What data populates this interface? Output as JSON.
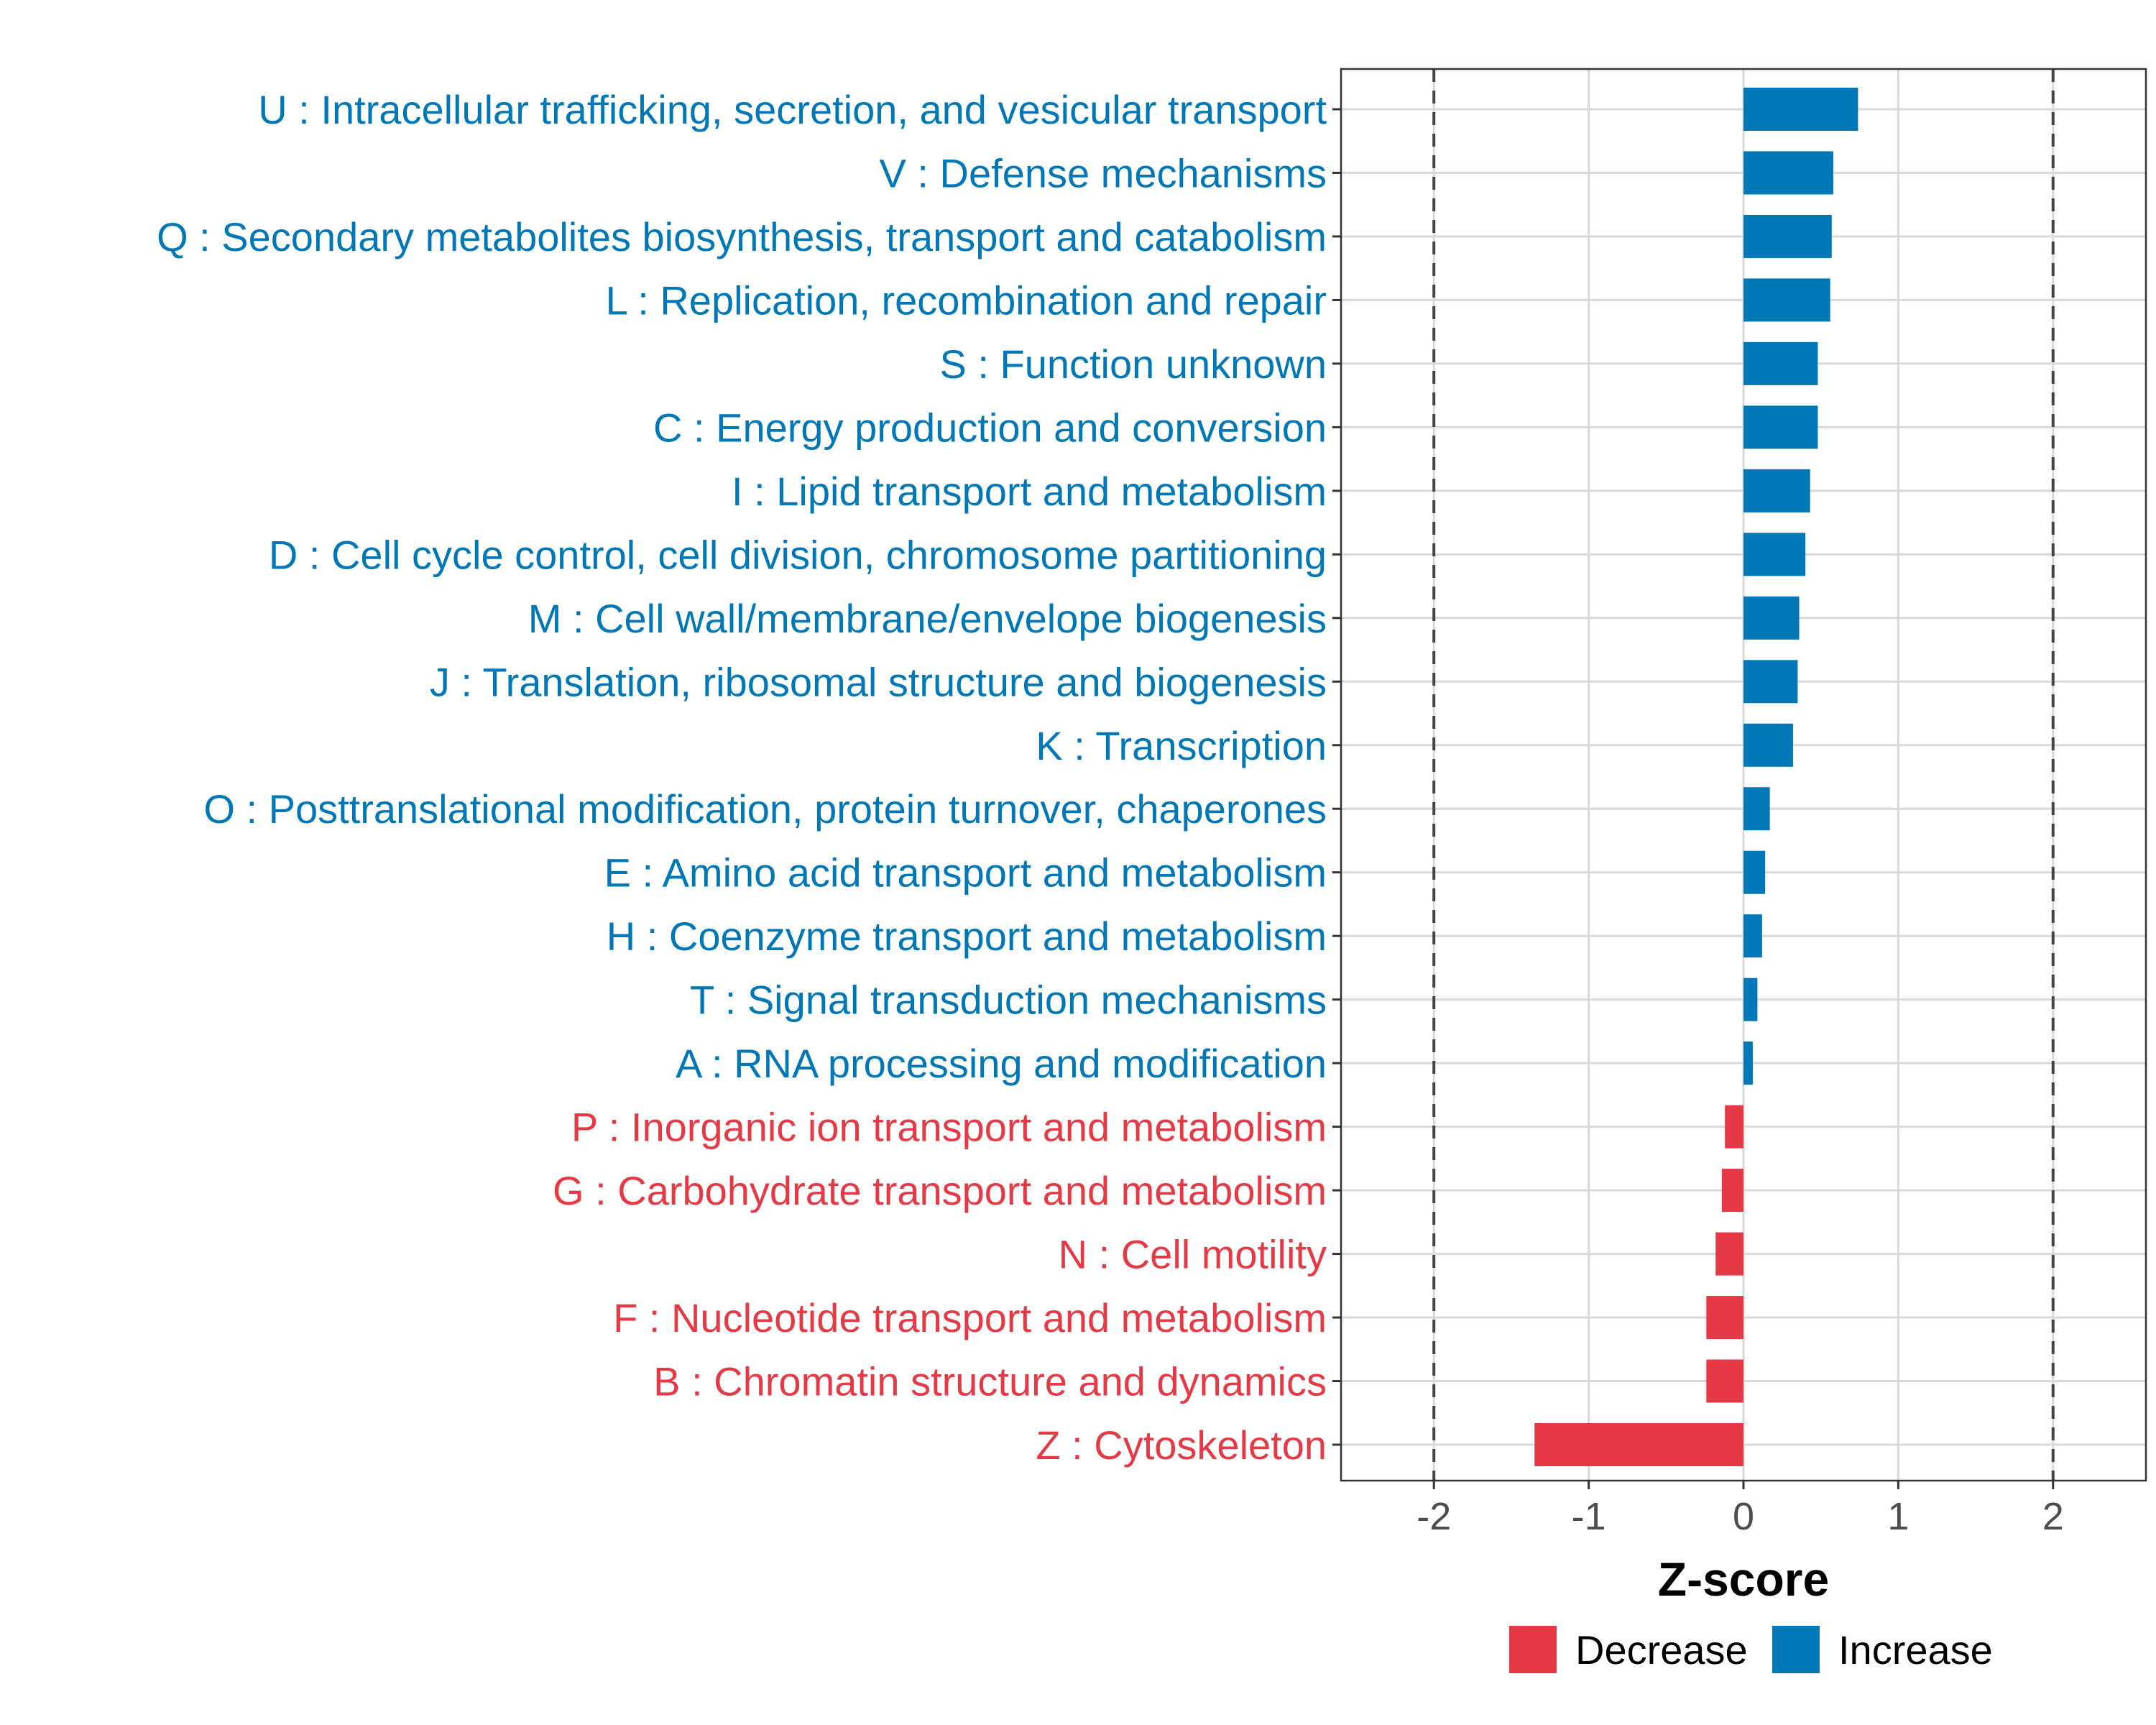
{
  "chart_data": {
    "type": "bar",
    "orientation": "horizontal",
    "title": "",
    "xlabel": "Z-score",
    "ylabel": "",
    "xlim": [
      -2.6,
      2.6
    ],
    "x_ticks": [
      -2,
      -1,
      0,
      1,
      2
    ],
    "x_tick_labels": [
      "-2",
      "-1",
      "0",
      "1",
      "2"
    ],
    "reference_lines": [
      -2,
      2
    ],
    "grid": true,
    "legend_position": "bottom",
    "colors": {
      "Decrease": "#E63946",
      "Increase": "#0077B6"
    },
    "legend": [
      {
        "label": "Decrease",
        "key": "Decrease"
      },
      {
        "label": "Increase",
        "key": "Increase"
      }
    ],
    "categories": [
      {
        "label": "U : Intracellular trafficking, secretion, and vesicular transport",
        "value": 0.74,
        "direction": "Increase"
      },
      {
        "label": "V : Defense mechanisms",
        "value": 0.58,
        "direction": "Increase"
      },
      {
        "label": "Q : Secondary metabolites biosynthesis, transport and catabolism",
        "value": 0.57,
        "direction": "Increase"
      },
      {
        "label": "L : Replication, recombination and repair",
        "value": 0.56,
        "direction": "Increase"
      },
      {
        "label": "S : Function unknown",
        "value": 0.48,
        "direction": "Increase"
      },
      {
        "label": "C : Energy production and conversion",
        "value": 0.48,
        "direction": "Increase"
      },
      {
        "label": "I : Lipid transport and metabolism",
        "value": 0.43,
        "direction": "Increase"
      },
      {
        "label": "D : Cell cycle control, cell division, chromosome partitioning",
        "value": 0.4,
        "direction": "Increase"
      },
      {
        "label": "M : Cell wall/membrane/envelope biogenesis",
        "value": 0.36,
        "direction": "Increase"
      },
      {
        "label": "J : Translation, ribosomal structure and biogenesis",
        "value": 0.35,
        "direction": "Increase"
      },
      {
        "label": "K : Transcription",
        "value": 0.32,
        "direction": "Increase"
      },
      {
        "label": "O : Posttranslational modification, protein turnover, chaperones",
        "value": 0.17,
        "direction": "Increase"
      },
      {
        "label": "E : Amino acid transport and metabolism",
        "value": 0.14,
        "direction": "Increase"
      },
      {
        "label": "H : Coenzyme transport and metabolism",
        "value": 0.12,
        "direction": "Increase"
      },
      {
        "label": "T : Signal transduction mechanisms",
        "value": 0.09,
        "direction": "Increase"
      },
      {
        "label": "A : RNA processing and modification",
        "value": 0.06,
        "direction": "Increase"
      },
      {
        "label": "P : Inorganic ion transport and metabolism",
        "value": -0.12,
        "direction": "Decrease"
      },
      {
        "label": "G : Carbohydrate transport and metabolism",
        "value": -0.14,
        "direction": "Decrease"
      },
      {
        "label": "N : Cell motility",
        "value": -0.18,
        "direction": "Decrease"
      },
      {
        "label": "F : Nucleotide transport and metabolism",
        "value": -0.24,
        "direction": "Decrease"
      },
      {
        "label": "B : Chromatin structure and dynamics",
        "value": -0.24,
        "direction": "Decrease"
      },
      {
        "label": "Z : Cytoskeleton",
        "value": -1.35,
        "direction": "Decrease"
      }
    ]
  }
}
